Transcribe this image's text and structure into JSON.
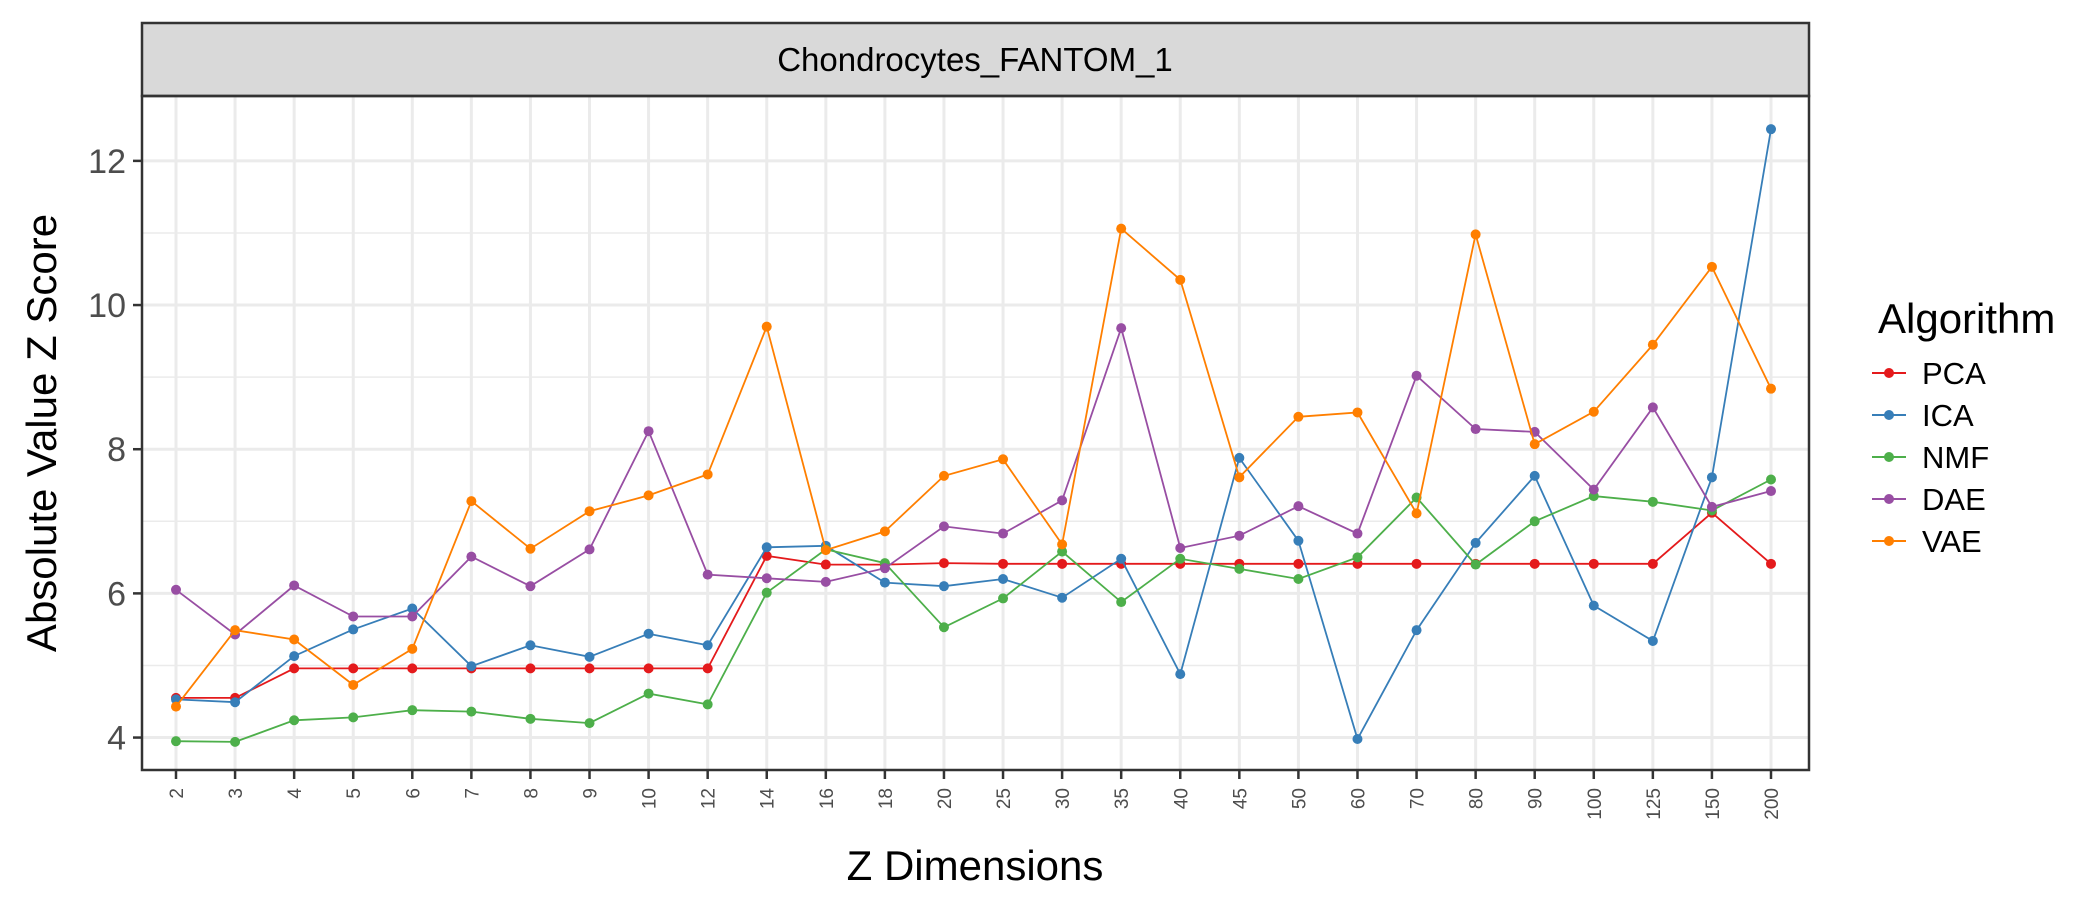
{
  "chart_data": {
    "type": "line",
    "title": "Chondrocytes_FANTOM_1",
    "xlabel": "Z Dimensions",
    "ylabel": "Absolute Value Z Score",
    "ylim": [
      3.55,
      12.9
    ],
    "yticks": [
      4,
      6,
      8,
      10,
      12
    ],
    "grid": true,
    "legend_title": "Algorithm",
    "legend_position": "right",
    "categories": [
      "2",
      "3",
      "4",
      "5",
      "6",
      "7",
      "8",
      "9",
      "10",
      "12",
      "14",
      "16",
      "18",
      "20",
      "25",
      "30",
      "35",
      "40",
      "45",
      "50",
      "60",
      "70",
      "80",
      "90",
      "100",
      "125",
      "150",
      "200"
    ],
    "series": [
      {
        "name": "PCA",
        "color": "#E41A1C",
        "values": [
          4.55,
          4.55,
          4.96,
          4.96,
          4.96,
          4.96,
          4.96,
          4.96,
          4.96,
          4.96,
          6.52,
          6.4,
          6.4,
          6.42,
          6.41,
          6.41,
          6.41,
          6.41,
          6.41,
          6.41,
          6.41,
          6.41,
          6.41,
          6.41,
          6.41,
          6.41,
          7.12,
          6.41
        ]
      },
      {
        "name": "ICA",
        "color": "#377EB8",
        "values": [
          4.53,
          4.49,
          5.13,
          5.5,
          5.79,
          4.99,
          5.28,
          5.12,
          5.44,
          5.28,
          6.64,
          6.66,
          6.15,
          6.1,
          6.2,
          5.94,
          6.48,
          4.88,
          7.88,
          6.73,
          3.98,
          5.49,
          6.7,
          7.63,
          5.83,
          5.34,
          7.61,
          12.44
        ]
      },
      {
        "name": "NMF",
        "color": "#4DAF4A",
        "values": [
          3.95,
          3.94,
          4.24,
          4.28,
          4.38,
          4.36,
          4.26,
          4.2,
          4.61,
          4.46,
          6.01,
          6.61,
          6.42,
          5.53,
          5.93,
          6.58,
          5.88,
          6.48,
          6.34,
          6.2,
          6.5,
          7.33,
          6.4,
          7.0,
          7.35,
          7.27,
          7.15,
          7.58
        ]
      },
      {
        "name": "DAE",
        "color": "#984EA3",
        "values": [
          6.05,
          5.43,
          6.11,
          5.68,
          5.68,
          6.51,
          6.1,
          6.61,
          8.25,
          6.26,
          6.21,
          6.16,
          6.35,
          6.93,
          6.83,
          7.29,
          9.68,
          6.63,
          6.8,
          7.21,
          6.83,
          9.02,
          8.28,
          8.24,
          7.44,
          8.58,
          7.2,
          7.42
        ]
      },
      {
        "name": "VAE",
        "color": "#FF7F00",
        "values": [
          4.43,
          5.49,
          5.36,
          4.73,
          5.23,
          7.28,
          6.62,
          7.14,
          7.36,
          7.65,
          9.7,
          6.6,
          6.86,
          7.63,
          7.86,
          6.68,
          11.06,
          10.35,
          7.61,
          8.45,
          8.51,
          7.11,
          10.98,
          8.07,
          8.52,
          9.45,
          10.53,
          8.84
        ]
      }
    ]
  }
}
